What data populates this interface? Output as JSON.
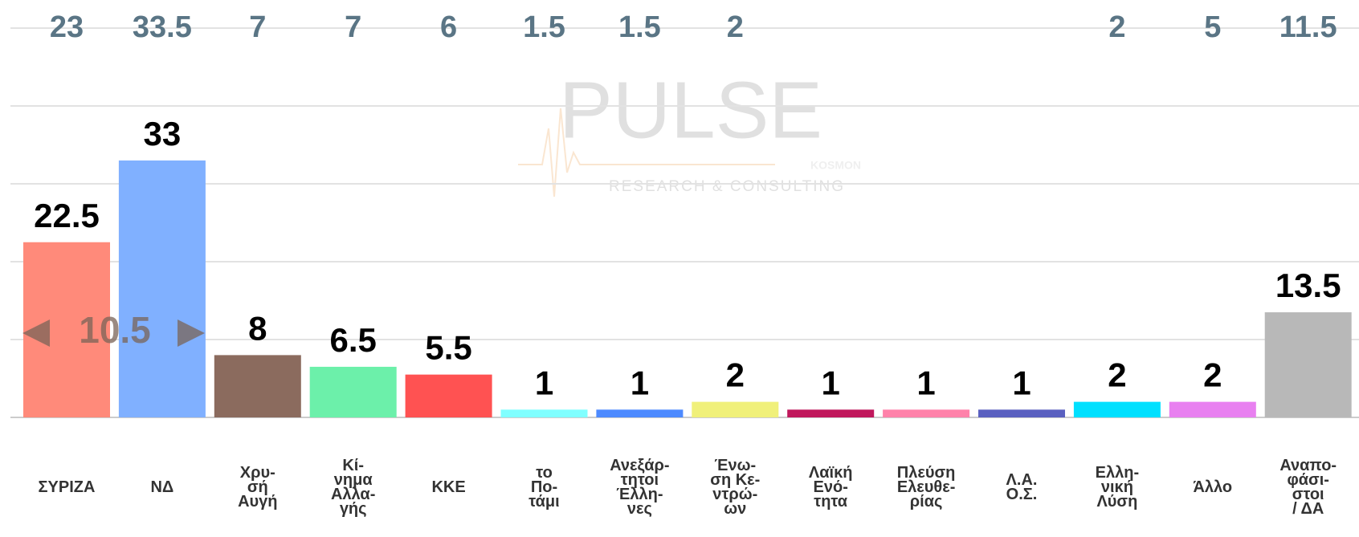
{
  "chart_data": {
    "type": "bar",
    "categories": [
      [
        "ΣΥΡΙΖΑ"
      ],
      [
        "ΝΔ"
      ],
      [
        "Χρυ-",
        "σή",
        "Αυγή"
      ],
      [
        "Κί-",
        "νημα",
        "Αλλα-",
        "γής"
      ],
      [
        "ΚΚΕ"
      ],
      [
        "το",
        "Πο-",
        "τάμι"
      ],
      [
        "Ανεξάρ-",
        "τητοι",
        "Έλλη-",
        "νες"
      ],
      [
        "Ένω-",
        "ση Κε-",
        "ντρώ-",
        "ων"
      ],
      [
        "Λαϊκή",
        "Ενό-",
        "τητα"
      ],
      [
        "Πλεύση",
        "Ελευθε-",
        "ρίας"
      ],
      [
        "Λ.Α.",
        "Ο.Σ."
      ],
      [
        "Ελλη-",
        "νική",
        "Λύση"
      ],
      [
        "Άλλο"
      ],
      [
        "Αναπο-",
        "φάσι-",
        "στοι",
        "/ ΔΑ"
      ]
    ],
    "values": [
      22.5,
      33,
      8,
      6.5,
      5.5,
      1,
      1,
      2,
      1,
      1,
      1,
      2,
      2,
      13.5
    ],
    "previous_values": [
      23,
      33.5,
      7,
      7,
      6,
      1.5,
      1.5,
      2,
      null,
      null,
      null,
      2,
      5,
      11.5
    ],
    "colors": [
      "#ff8a7a",
      "#80b0ff",
      "#8b6b5e",
      "#6cf0aa",
      "#ff5252",
      "#80ffff",
      "#4d8aff",
      "#f0f07a",
      "#c0185c",
      "#ff82aa",
      "#5a60c0",
      "#00e0ff",
      "#e880f0",
      "#b8b8b8"
    ],
    "annotation": "10.5",
    "watermark": {
      "logo": "PULSE",
      "brand": "KOSMON",
      "tagline": "RESEARCH & CONSULTING"
    },
    "ylim": [
      0,
      50
    ],
    "yticks": [
      0,
      10,
      20,
      30,
      40,
      50
    ],
    "grid": true
  }
}
